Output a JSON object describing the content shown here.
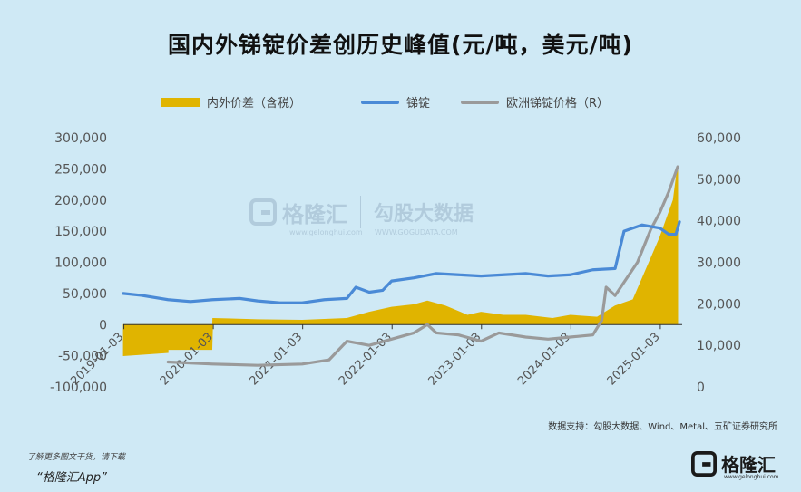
{
  "title": "国内外锑锭价差创历史峰值(元/吨，美元/吨)",
  "legend": {
    "spread": "内外价差（含税）",
    "domestic": "锑锭",
    "europe": "欧洲锑锭价格（R）"
  },
  "source": "数据支持：勾股大数据、Wind、Metal、五矿证券研究所",
  "download_note": "了解更多图文干货，请下载",
  "download_app": "“格隆汇App”",
  "brand": {
    "name": "格隆汇",
    "sub": "www.gelonghui.com"
  },
  "watermark": {
    "left": "格隆汇",
    "left_sub": "www.gelonghui.com",
    "right": "勾股大数据",
    "right_sub": "WWW.GOGUDATA.COM"
  },
  "colors": {
    "spread": "#e0b400",
    "domestic": "#4a8ad6",
    "europe": "#9a9a9a",
    "background": "#cfe9f5"
  },
  "chart_data": {
    "type": "line",
    "x_ticks": [
      "2019-01-03",
      "2020-01-03",
      "2021-01-03",
      "2022-01-03",
      "2023-01-03",
      "2024-01-03",
      "2025-01-03"
    ],
    "y_left": {
      "ticks": [
        "-100,000",
        "-50,000",
        "0",
        "50,000",
        "100,000",
        "150,000",
        "200,000",
        "250,000",
        "300,000"
      ],
      "range": [
        -100000,
        300000
      ]
    },
    "y_right": {
      "ticks": [
        "0",
        "10,000",
        "20,000",
        "30,000",
        "40,000",
        "50,000",
        "60,000"
      ],
      "range": [
        0,
        60000
      ]
    },
    "series": [
      {
        "name": "内外价差（含税）",
        "kind": "area",
        "axis": "left",
        "points": [
          [
            2019.0,
            -50000
          ],
          [
            2019.5,
            -45000
          ],
          [
            2019.5,
            -40000
          ],
          [
            2019.99,
            -40000
          ],
          [
            2020.0,
            10000
          ],
          [
            2020.5,
            8000
          ],
          [
            2021.0,
            7000
          ],
          [
            2021.5,
            10000
          ],
          [
            2021.75,
            20000
          ],
          [
            2022.0,
            28000
          ],
          [
            2022.25,
            32000
          ],
          [
            2022.4,
            38000
          ],
          [
            2022.6,
            30000
          ],
          [
            2022.85,
            15000
          ],
          [
            2023.0,
            20000
          ],
          [
            2023.25,
            15000
          ],
          [
            2023.5,
            15000
          ],
          [
            2023.8,
            10000
          ],
          [
            2024.0,
            15000
          ],
          [
            2024.3,
            12000
          ],
          [
            2024.5,
            30000
          ],
          [
            2024.7,
            40000
          ],
          [
            2024.85,
            90000
          ],
          [
            2025.0,
            140000
          ],
          [
            2025.15,
            200000
          ],
          [
            2025.2,
            255000
          ]
        ]
      },
      {
        "name": "锑锭",
        "kind": "line",
        "axis": "left",
        "points": [
          [
            2019.0,
            50000
          ],
          [
            2019.2,
            47000
          ],
          [
            2019.5,
            40000
          ],
          [
            2019.75,
            37000
          ],
          [
            2020.0,
            40000
          ],
          [
            2020.3,
            42000
          ],
          [
            2020.5,
            38000
          ],
          [
            2020.75,
            35000
          ],
          [
            2021.0,
            35000
          ],
          [
            2021.25,
            40000
          ],
          [
            2021.5,
            42000
          ],
          [
            2021.6,
            60000
          ],
          [
            2021.75,
            52000
          ],
          [
            2021.9,
            55000
          ],
          [
            2022.0,
            70000
          ],
          [
            2022.25,
            75000
          ],
          [
            2022.5,
            82000
          ],
          [
            2022.75,
            80000
          ],
          [
            2023.0,
            78000
          ],
          [
            2023.25,
            80000
          ],
          [
            2023.5,
            82000
          ],
          [
            2023.75,
            78000
          ],
          [
            2024.0,
            80000
          ],
          [
            2024.25,
            88000
          ],
          [
            2024.5,
            90000
          ],
          [
            2024.6,
            150000
          ],
          [
            2024.8,
            160000
          ],
          [
            2025.0,
            155000
          ],
          [
            2025.1,
            145000
          ],
          [
            2025.18,
            145000
          ],
          [
            2025.22,
            165000
          ]
        ]
      },
      {
        "name": "欧洲锑锭价格（R）",
        "kind": "line",
        "axis": "right",
        "points": [
          [
            2019.5,
            6000
          ],
          [
            2020.0,
            5500
          ],
          [
            2020.5,
            5200
          ],
          [
            2021.0,
            5500
          ],
          [
            2021.3,
            6500
          ],
          [
            2021.5,
            11000
          ],
          [
            2021.75,
            10000
          ],
          [
            2022.0,
            11500
          ],
          [
            2022.25,
            13000
          ],
          [
            2022.4,
            15000
          ],
          [
            2022.5,
            13000
          ],
          [
            2022.75,
            12500
          ],
          [
            2023.0,
            11000
          ],
          [
            2023.2,
            13000
          ],
          [
            2023.5,
            12000
          ],
          [
            2023.75,
            11500
          ],
          [
            2024.0,
            12000
          ],
          [
            2024.25,
            12500
          ],
          [
            2024.35,
            16000
          ],
          [
            2024.4,
            24000
          ],
          [
            2024.5,
            22000
          ],
          [
            2024.75,
            30000
          ],
          [
            2024.9,
            38000
          ],
          [
            2025.0,
            42000
          ],
          [
            2025.1,
            47000
          ],
          [
            2025.2,
            53000
          ]
        ]
      }
    ]
  }
}
